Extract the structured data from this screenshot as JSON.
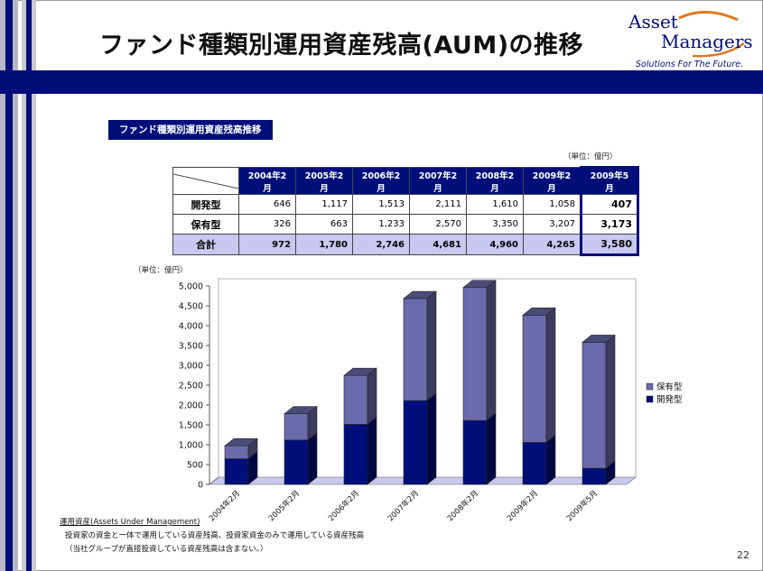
{
  "slide": {
    "title": "ファンド種類別運用資産残高(AUM)の推移",
    "page_number": "22"
  },
  "logo": {
    "line1": "Asset",
    "line2": "Managers",
    "tagline": "Solutions For The Future."
  },
  "section_label": "ファンド種類別運用資産残高推移",
  "table": {
    "unit": "（単位：億円）",
    "columns": [
      "2004年2月",
      "2005年2月",
      "2006年2月",
      "2007年2月",
      "2008年2月",
      "2009年2月",
      "2009年5月"
    ],
    "rows": [
      {
        "label": "開発型",
        "values": [
          "646",
          "1,117",
          "1,513",
          "2,111",
          "1,610",
          "1,058",
          "407"
        ]
      },
      {
        "label": "保有型",
        "values": [
          "326",
          "663",
          "1,233",
          "2,570",
          "3,350",
          "3,207",
          "3,173"
        ]
      },
      {
        "label": "合計",
        "values": [
          "972",
          "1,780",
          "2,746",
          "4,681",
          "4,960",
          "4,265",
          "3,580"
        ]
      }
    ]
  },
  "chart_unit": "（単位：億円）",
  "chart_data": {
    "type": "bar",
    "stacked": true,
    "categories": [
      "2004年2月",
      "2005年2月",
      "2006年2月",
      "2007年2月",
      "2008年2月",
      "2009年2月",
      "2009年5月"
    ],
    "series": [
      {
        "name": "開発型",
        "values": [
          646,
          1117,
          1513,
          2111,
          1610,
          1058,
          407
        ],
        "color": "#000e7a"
      },
      {
        "name": "保有型",
        "values": [
          326,
          663,
          1233,
          2570,
          3350,
          3207,
          3173
        ],
        "color": "#6b6bab"
      }
    ],
    "ylim": [
      0,
      5000
    ],
    "yticks": [
      "0",
      "500",
      "1,000",
      "1,500",
      "2,000",
      "2,500",
      "3,000",
      "3,500",
      "4,000",
      "4,500",
      "5,000"
    ],
    "legend_position": "right",
    "legend_order": [
      "保有型",
      "開発型"
    ],
    "style": "3d",
    "grid": false
  },
  "notes": {
    "title": "運用資産(Assets Under Management)",
    "line1": "投資家の資金と一体で運用している資産残高、投資家資金のみで運用している資産残高",
    "line2": "（当社グループが直接投資している資産残高は含まない。）"
  },
  "colors": {
    "navy": "#000e7a",
    "hoyu": "#6b6bab",
    "floor": "#c8c8f0"
  }
}
